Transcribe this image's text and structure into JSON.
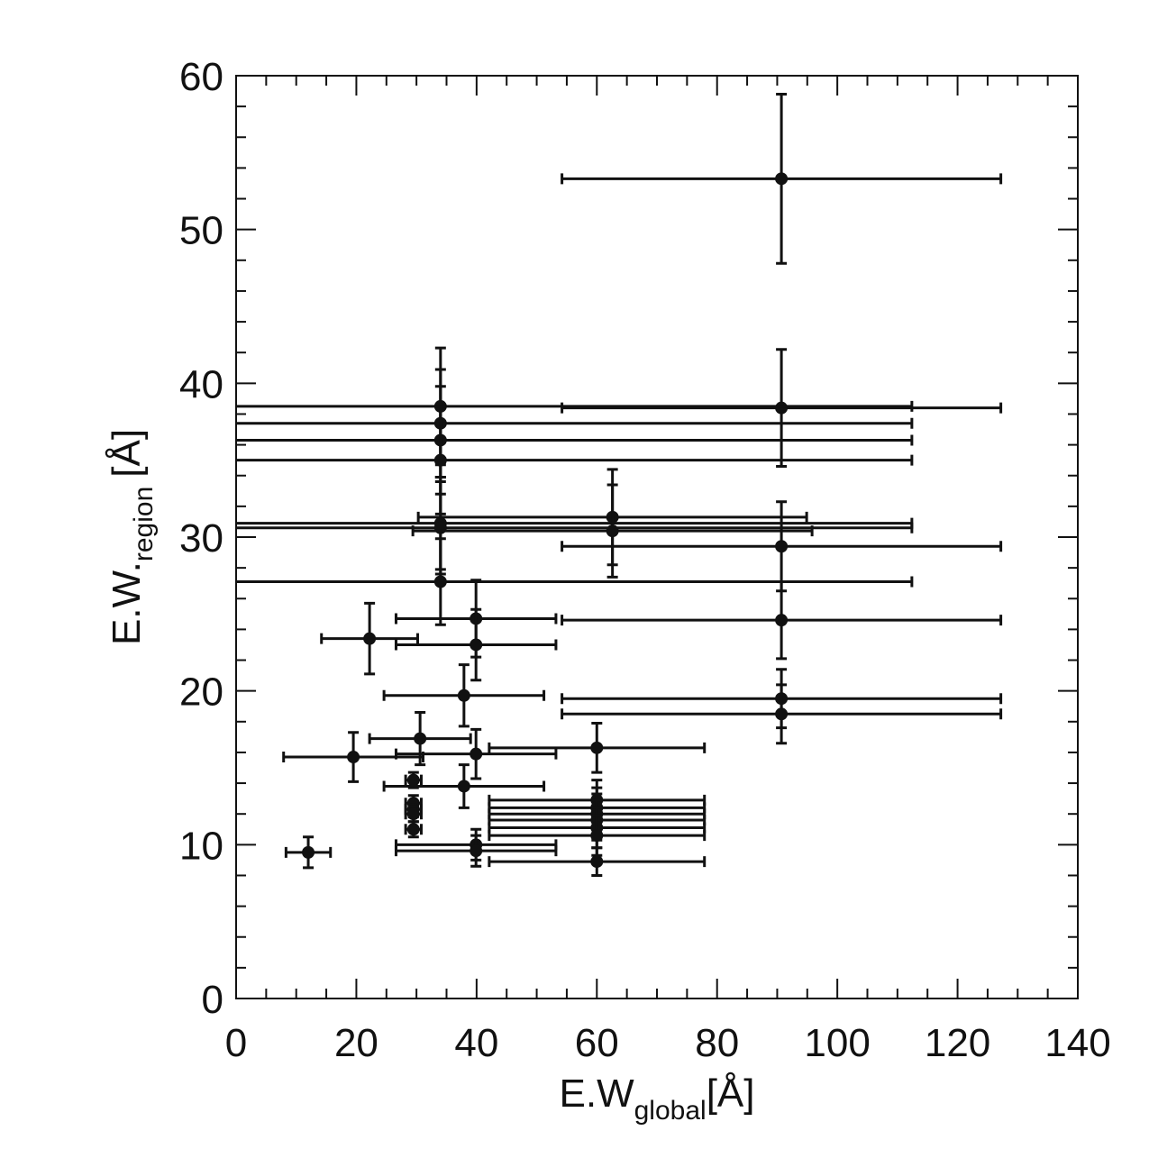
{
  "chart_data": {
    "type": "scatter",
    "xlabel": {
      "main": "E.W",
      "sub": "global",
      "unit": "[Å]"
    },
    "ylabel": {
      "main": "E.W.",
      "sub": "region",
      "unit": "[Å]"
    },
    "color": "#111111",
    "x": [
      90.7,
      90.7,
      34.0,
      34.0,
      34.0,
      34.0,
      34.0,
      34.0,
      34.0,
      62.6,
      62.6,
      90.7,
      90.7,
      90.7,
      90.7,
      22.2,
      39.9,
      39.9,
      37.9,
      30.6,
      19.5,
      39.9,
      60.0,
      37.9,
      29.5,
      29.5,
      29.5,
      29.5,
      29.5,
      60.0,
      60.0,
      60.0,
      60.0,
      60.0,
      60.0,
      60.0,
      39.9,
      39.9,
      12.0
    ],
    "values": [
      53.3,
      38.4,
      38.5,
      37.4,
      36.3,
      35.0,
      30.9,
      30.6,
      27.1,
      31.3,
      30.4,
      29.4,
      24.6,
      19.5,
      18.5,
      23.4,
      24.7,
      23.0,
      19.7,
      16.9,
      15.7,
      15.9,
      16.3,
      13.8,
      14.2,
      12.7,
      12.3,
      12.0,
      11.0,
      12.9,
      12.4,
      12.0,
      11.6,
      11.1,
      10.6,
      8.9,
      10.0,
      9.6,
      9.5
    ],
    "xerr": [
      36.5,
      36.5,
      78.4,
      78.4,
      78.4,
      78.4,
      78.4,
      78.4,
      78.4,
      32.3,
      33.2,
      36.5,
      36.5,
      36.5,
      36.5,
      8.0,
      13.3,
      13.3,
      13.3,
      8.4,
      11.6,
      13.3,
      17.9,
      13.3,
      1.3,
      1.3,
      1.3,
      1.3,
      1.3,
      17.9,
      17.9,
      17.9,
      17.9,
      17.9,
      17.9,
      17.9,
      13.3,
      13.3,
      3.7
    ],
    "yerr": [
      5.5,
      3.8,
      3.8,
      3.5,
      3.5,
      3.5,
      3.0,
      3.0,
      2.8,
      3.1,
      3.0,
      2.9,
      2.5,
      1.9,
      1.9,
      2.3,
      2.5,
      2.3,
      2.0,
      1.7,
      1.6,
      1.6,
      1.6,
      1.4,
      0.5,
      0.5,
      0.5,
      0.5,
      0.5,
      1.3,
      1.3,
      1.3,
      1.3,
      1.3,
      1.3,
      0.9,
      1.0,
      1.0,
      1.0
    ],
    "xlim": [
      0,
      140
    ],
    "ylim": [
      0,
      60
    ],
    "xticks": [
      0,
      20,
      40,
      60,
      80,
      100,
      120,
      140
    ],
    "yticks": [
      0,
      10,
      20,
      30,
      40,
      50,
      60
    ],
    "xminor": [
      5,
      10,
      15,
      25,
      30,
      35,
      45,
      50,
      55,
      65,
      70,
      75,
      85,
      90,
      95,
      105,
      110,
      115,
      125,
      130,
      135
    ],
    "yminor": [
      2,
      4,
      6,
      8,
      12,
      14,
      16,
      18,
      22,
      24,
      26,
      28,
      32,
      34,
      36,
      38,
      42,
      44,
      46,
      48,
      52,
      54,
      56,
      58
    ]
  }
}
